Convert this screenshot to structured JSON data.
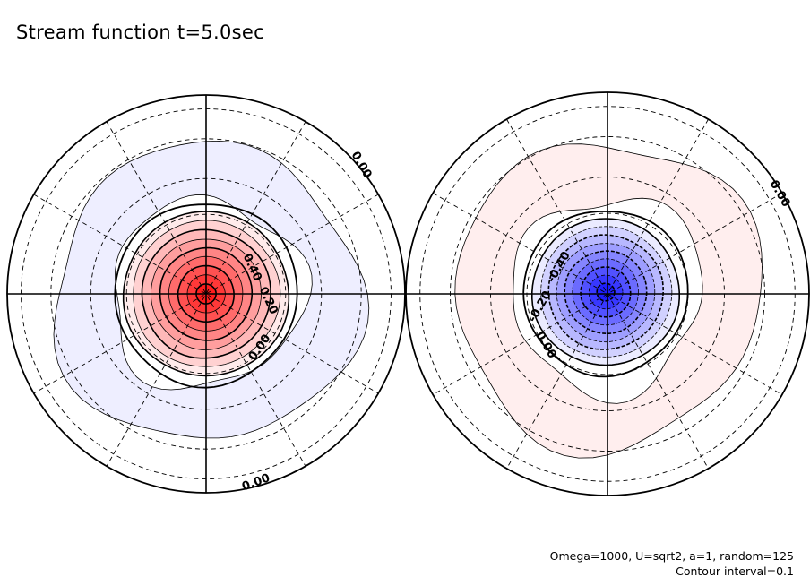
{
  "title": "Stream function t=5.0sec",
  "params_line1": "Omega=1000, U=sqrt2, a=1, random=125",
  "params_line2": "Contour interval=0.1",
  "chart_data": [
    {
      "type": "contour-polar",
      "panel": "left",
      "center_sign": "positive",
      "peak_fill": "#ff2020",
      "low_fill": "#eeeeff",
      "contour_interval": 0.1,
      "contour_labels": [
        {
          "text": "0.00"
        },
        {
          "text": "0.00"
        },
        {
          "text": "0.00"
        },
        {
          "text": "0.40"
        },
        {
          "text": "0.20"
        }
      ]
    },
    {
      "type": "contour-polar",
      "panel": "right",
      "center_sign": "negative",
      "peak_fill": "#2020ff",
      "low_fill": "#ffeeee",
      "contour_interval": 0.1,
      "contour_labels": [
        {
          "text": "0.00"
        },
        {
          "text": "0.00"
        },
        {
          "text": "-0.40"
        },
        {
          "text": "-0.20"
        }
      ]
    }
  ]
}
